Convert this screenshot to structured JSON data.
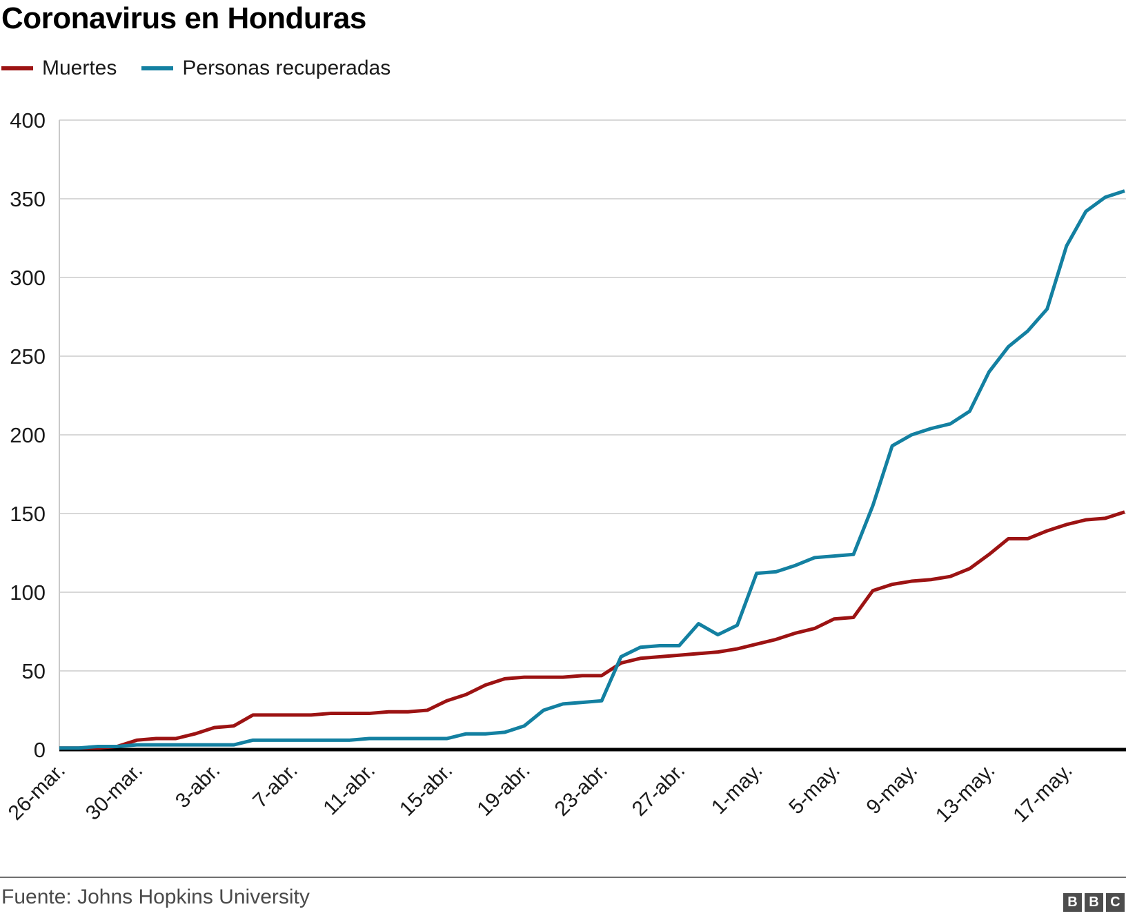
{
  "header": {
    "title": "Coronavirus en Honduras"
  },
  "legend": {
    "items": [
      {
        "label": "Muertes",
        "color": "#9c1313"
      },
      {
        "label": "Personas recuperadas",
        "color": "#1380a1"
      }
    ]
  },
  "footer": {
    "source": "Fuente: Johns Hopkins University",
    "logo_letters": [
      "B",
      "B",
      "C"
    ]
  },
  "chart_data": {
    "type": "line",
    "title": "Coronavirus en Honduras",
    "x": [
      "26-mar.",
      "27-mar.",
      "28-mar.",
      "29-mar.",
      "30-mar.",
      "31-mar.",
      "1-abr.",
      "2-abr.",
      "3-abr.",
      "4-abr.",
      "5-abr.",
      "6-abr.",
      "7-abr.",
      "8-abr.",
      "9-abr.",
      "10-abr.",
      "11-abr.",
      "12-abr.",
      "13-abr.",
      "14-abr.",
      "15-abr.",
      "16-abr.",
      "17-abr.",
      "18-abr.",
      "19-abr.",
      "20-abr.",
      "21-abr.",
      "22-abr.",
      "23-abr.",
      "24-abr.",
      "25-abr.",
      "26-abr.",
      "27-abr.",
      "28-abr.",
      "29-abr.",
      "30-abr.",
      "1-may.",
      "2-may.",
      "3-may.",
      "4-may.",
      "5-may.",
      "6-may.",
      "7-may.",
      "8-may.",
      "9-may.",
      "10-may.",
      "11-may.",
      "12-may.",
      "13-may.",
      "14-may.",
      "15-may.",
      "16-may.",
      "17-may.",
      "18-may.",
      "19-may.",
      "20-may."
    ],
    "series": [
      {
        "name": "Muertes",
        "color": "#9c1313",
        "values": [
          1,
          1,
          1,
          2,
          6,
          7,
          7,
          10,
          14,
          15,
          22,
          22,
          22,
          22,
          23,
          23,
          23,
          24,
          24,
          25,
          31,
          35,
          41,
          45,
          46,
          46,
          46,
          47,
          47,
          55,
          58,
          59,
          60,
          61,
          62,
          64,
          67,
          70,
          74,
          77,
          83,
          84,
          101,
          105,
          107,
          108,
          110,
          115,
          124,
          134,
          134,
          139,
          143,
          146,
          147,
          151
        ]
      },
      {
        "name": "Personas recuperadas",
        "color": "#1380a1",
        "values": [
          1,
          1,
          2,
          2,
          3,
          3,
          3,
          3,
          3,
          3,
          6,
          6,
          6,
          6,
          6,
          6,
          7,
          7,
          7,
          7,
          7,
          10,
          10,
          11,
          15,
          25,
          29,
          30,
          31,
          59,
          65,
          66,
          66,
          80,
          73,
          79,
          112,
          113,
          117,
          122,
          123,
          124,
          155,
          193,
          200,
          204,
          207,
          215,
          240,
          256,
          266,
          280,
          320,
          342,
          351,
          355
        ]
      }
    ],
    "ylim": [
      0,
      400
    ],
    "y_ticks": [
      0,
      50,
      100,
      150,
      200,
      250,
      300,
      350,
      400
    ],
    "x_tick_indices": [
      0,
      4,
      8,
      12,
      16,
      20,
      24,
      28,
      32,
      36,
      40,
      44,
      48,
      52
    ],
    "x_tick_labels": [
      "26-mar.",
      "30-mar.",
      "3-abr.",
      "7-abr.",
      "11-abr.",
      "15-abr.",
      "19-abr.",
      "23-abr.",
      "27-abr.",
      "1-may.",
      "5-may.",
      "9-may.",
      "13-may.",
      "17-may."
    ],
    "grid": "horizontal",
    "legend_position": "top-left",
    "source": "Fuente: Johns Hopkins University"
  }
}
